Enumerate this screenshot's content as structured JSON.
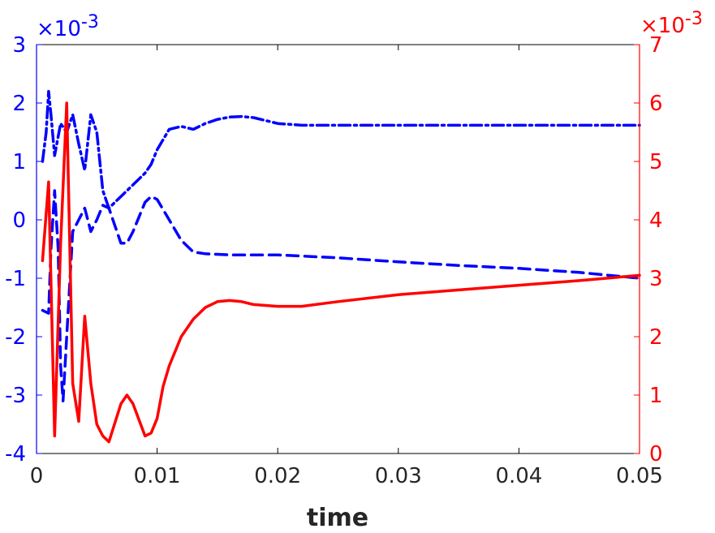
{
  "chart_data": {
    "type": "line",
    "xlabel": "time",
    "xlim": [
      0,
      0.05
    ],
    "x_ticks": [
      "0",
      "0.01",
      "0.02",
      "0.03",
      "0.04",
      "0.05"
    ],
    "y_left": {
      "lim": [
        -4,
        3
      ],
      "ticks": [
        "-4",
        "-3",
        "-2",
        "-1",
        "0",
        "1",
        "2",
        "3"
      ],
      "exponent_base": "×10",
      "exponent": "-3",
      "color": "#0000ff"
    },
    "y_right": {
      "lim": [
        0,
        7
      ],
      "ticks": [
        "0",
        "1",
        "2",
        "3",
        "4",
        "5",
        "6",
        "7"
      ],
      "exponent_base": "×10",
      "exponent": "-3",
      "color": "#ff0000"
    },
    "box_color": "#000000",
    "series": [
      {
        "axis": "left",
        "style": "dashdot",
        "color": "#0000ff",
        "x": [
          0.0005,
          0.0008,
          0.001,
          0.0012,
          0.0015,
          0.002,
          0.0025,
          0.003,
          0.0035,
          0.004,
          0.0045,
          0.005,
          0.0055,
          0.006,
          0.007,
          0.008,
          0.009,
          0.0095,
          0.01,
          0.011,
          0.012,
          0.013,
          0.014,
          0.015,
          0.016,
          0.017,
          0.018,
          0.019,
          0.02,
          0.022,
          0.025,
          0.03,
          0.035,
          0.04,
          0.045,
          0.05
        ],
        "y": [
          1.0,
          1.5,
          2.2,
          1.8,
          1.1,
          1.65,
          1.5,
          1.8,
          1.3,
          0.85,
          1.8,
          1.5,
          0.5,
          0.2,
          0.4,
          0.6,
          0.8,
          0.95,
          1.2,
          1.55,
          1.6,
          1.55,
          1.65,
          1.72,
          1.76,
          1.77,
          1.75,
          1.7,
          1.65,
          1.62,
          1.62,
          1.62,
          1.62,
          1.62,
          1.62,
          1.62
        ]
      },
      {
        "axis": "left",
        "style": "dashed",
        "color": "#0000ff",
        "x": [
          0.0005,
          0.001,
          0.0012,
          0.0015,
          0.0018,
          0.002,
          0.0022,
          0.0025,
          0.003,
          0.0035,
          0.004,
          0.0045,
          0.005,
          0.0055,
          0.006,
          0.007,
          0.0075,
          0.008,
          0.009,
          0.0095,
          0.01,
          0.011,
          0.012,
          0.013,
          0.014,
          0.016,
          0.018,
          0.02,
          0.025,
          0.03,
          0.035,
          0.04,
          0.045,
          0.05
        ],
        "y": [
          -1.55,
          -1.6,
          -0.5,
          0.5,
          -0.5,
          -2.5,
          -3.1,
          -2.0,
          -0.2,
          0.0,
          0.2,
          -0.2,
          0.0,
          0.25,
          0.2,
          -0.4,
          -0.4,
          -0.2,
          0.3,
          0.4,
          0.35,
          0.0,
          -0.35,
          -0.55,
          -0.58,
          -0.6,
          -0.6,
          -0.6,
          -0.65,
          -0.72,
          -0.78,
          -0.83,
          -0.9,
          -1.0
        ]
      },
      {
        "axis": "right",
        "style": "solid",
        "color": "#ff0000",
        "x": [
          0.0005,
          0.001,
          0.0015,
          0.002,
          0.0025,
          0.003,
          0.0035,
          0.004,
          0.0045,
          0.005,
          0.0055,
          0.006,
          0.007,
          0.0075,
          0.008,
          0.009,
          0.0095,
          0.01,
          0.0105,
          0.011,
          0.012,
          0.013,
          0.014,
          0.015,
          0.016,
          0.017,
          0.018,
          0.02,
          0.022,
          0.025,
          0.03,
          0.035,
          0.04,
          0.045,
          0.05
        ],
        "y": [
          3.3,
          4.65,
          0.3,
          3.6,
          6.0,
          1.2,
          0.55,
          2.35,
          1.2,
          0.5,
          0.3,
          0.2,
          0.85,
          1.0,
          0.85,
          0.3,
          0.35,
          0.6,
          1.15,
          1.5,
          2.0,
          2.3,
          2.5,
          2.6,
          2.62,
          2.6,
          2.55,
          2.52,
          2.52,
          2.6,
          2.72,
          2.8,
          2.88,
          2.96,
          3.05
        ]
      }
    ]
  }
}
